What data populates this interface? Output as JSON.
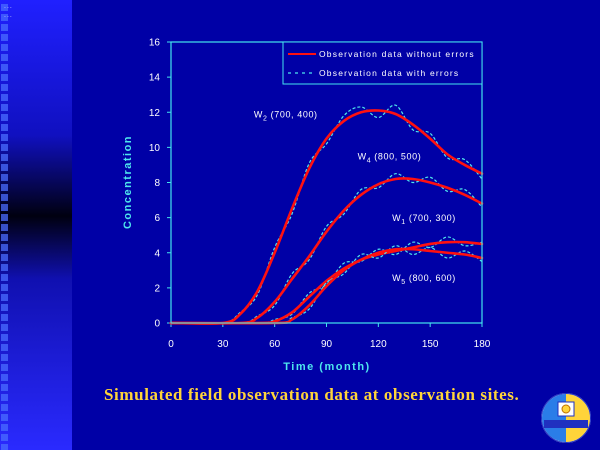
{
  "slide": {
    "corner_dots": "...\n...",
    "caption": "Simulated field observation data at observation sites."
  },
  "colors": {
    "background": "#0000a6",
    "axis": "#44e4ee",
    "error_free_line": "#ff1010",
    "with_error_line": "#4ee7ee",
    "caption": "#ffd43a"
  },
  "chart_data": {
    "type": "line",
    "title": "",
    "xlabel": "Time (month)",
    "ylabel": "Concentration",
    "xlim": [
      0,
      180
    ],
    "ylim": [
      0,
      16
    ],
    "xticks": [
      0,
      30,
      60,
      90,
      120,
      150,
      180
    ],
    "yticks": [
      0,
      2,
      4,
      6,
      8,
      10,
      12,
      14,
      16
    ],
    "grid": false,
    "legend_position": "top-right",
    "legend": [
      {
        "label": "Observation data without errors",
        "style": "solid",
        "color": "#ff1010"
      },
      {
        "label": "Observation data with errors",
        "style": "dashed",
        "color": "#4ee7ee"
      }
    ],
    "series": [
      {
        "name": "W2 (700, 400)",
        "label_main": "W",
        "label_sub": "2",
        "label_rest": " (700, 400)",
        "label_anchor": [
          48,
          11.7
        ],
        "x": [
          0,
          30,
          40,
          50,
          60,
          70,
          80,
          90,
          100,
          110,
          120,
          130,
          140,
          150,
          160,
          170,
          180
        ],
        "without_errors": [
          0,
          0,
          0.5,
          1.8,
          4.0,
          6.5,
          8.8,
          10.5,
          11.5,
          12.0,
          12.1,
          11.9,
          11.3,
          10.5,
          9.6,
          9.0,
          8.5
        ],
        "with_errors": [
          0,
          0,
          0.6,
          1.6,
          4.3,
          6.2,
          9.1,
          10.2,
          11.8,
          12.3,
          11.7,
          12.4,
          11.0,
          10.8,
          9.4,
          9.3,
          8.2
        ]
      },
      {
        "name": "W4 (800, 500)",
        "label_main": "W",
        "label_sub": "4",
        "label_rest": " (800, 500)",
        "label_anchor": [
          108,
          9.3
        ],
        "x": [
          0,
          40,
          50,
          60,
          70,
          80,
          90,
          100,
          110,
          120,
          130,
          140,
          150,
          160,
          170,
          180
        ],
        "without_errors": [
          0,
          0,
          0.3,
          1.2,
          2.5,
          3.8,
          5.2,
          6.4,
          7.3,
          7.9,
          8.2,
          8.2,
          8.0,
          7.7,
          7.3,
          6.8
        ],
        "with_errors": [
          0,
          0,
          0.4,
          1.0,
          2.8,
          3.6,
          5.5,
          6.2,
          7.6,
          7.7,
          8.5,
          8.0,
          8.3,
          7.5,
          7.6,
          6.6
        ]
      },
      {
        "name": "W1 (700, 300)",
        "label_main": "W",
        "label_sub": "1",
        "label_rest": " (700, 300)",
        "label_anchor": [
          128,
          5.8
        ],
        "x": [
          0,
          50,
          60,
          70,
          80,
          90,
          100,
          110,
          120,
          130,
          140,
          150,
          160,
          170,
          180
        ],
        "without_errors": [
          0,
          0,
          0.1,
          0.6,
          1.5,
          2.4,
          3.1,
          3.6,
          3.9,
          4.1,
          4.3,
          4.5,
          4.6,
          4.6,
          4.5
        ],
        "with_errors": [
          0,
          0,
          0.2,
          0.5,
          1.7,
          2.2,
          3.4,
          3.5,
          4.2,
          3.9,
          4.6,
          4.3,
          4.9,
          4.4,
          4.6
        ]
      },
      {
        "name": "W5 (800, 600)",
        "label_main": "W",
        "label_sub": "5",
        "label_rest": " (800, 600)",
        "label_anchor": [
          128,
          2.4
        ],
        "x": [
          0,
          60,
          70,
          80,
          90,
          100,
          110,
          120,
          130,
          140,
          150,
          160,
          170,
          180
        ],
        "without_errors": [
          0,
          0,
          0.2,
          1.0,
          2.1,
          3.0,
          3.6,
          4.0,
          4.2,
          4.2,
          4.1,
          4.0,
          3.9,
          3.7
        ],
        "with_errors": [
          0,
          0,
          0.3,
          0.8,
          2.3,
          2.8,
          3.9,
          3.7,
          4.4,
          3.9,
          4.3,
          3.7,
          4.1,
          3.5
        ]
      }
    ]
  }
}
